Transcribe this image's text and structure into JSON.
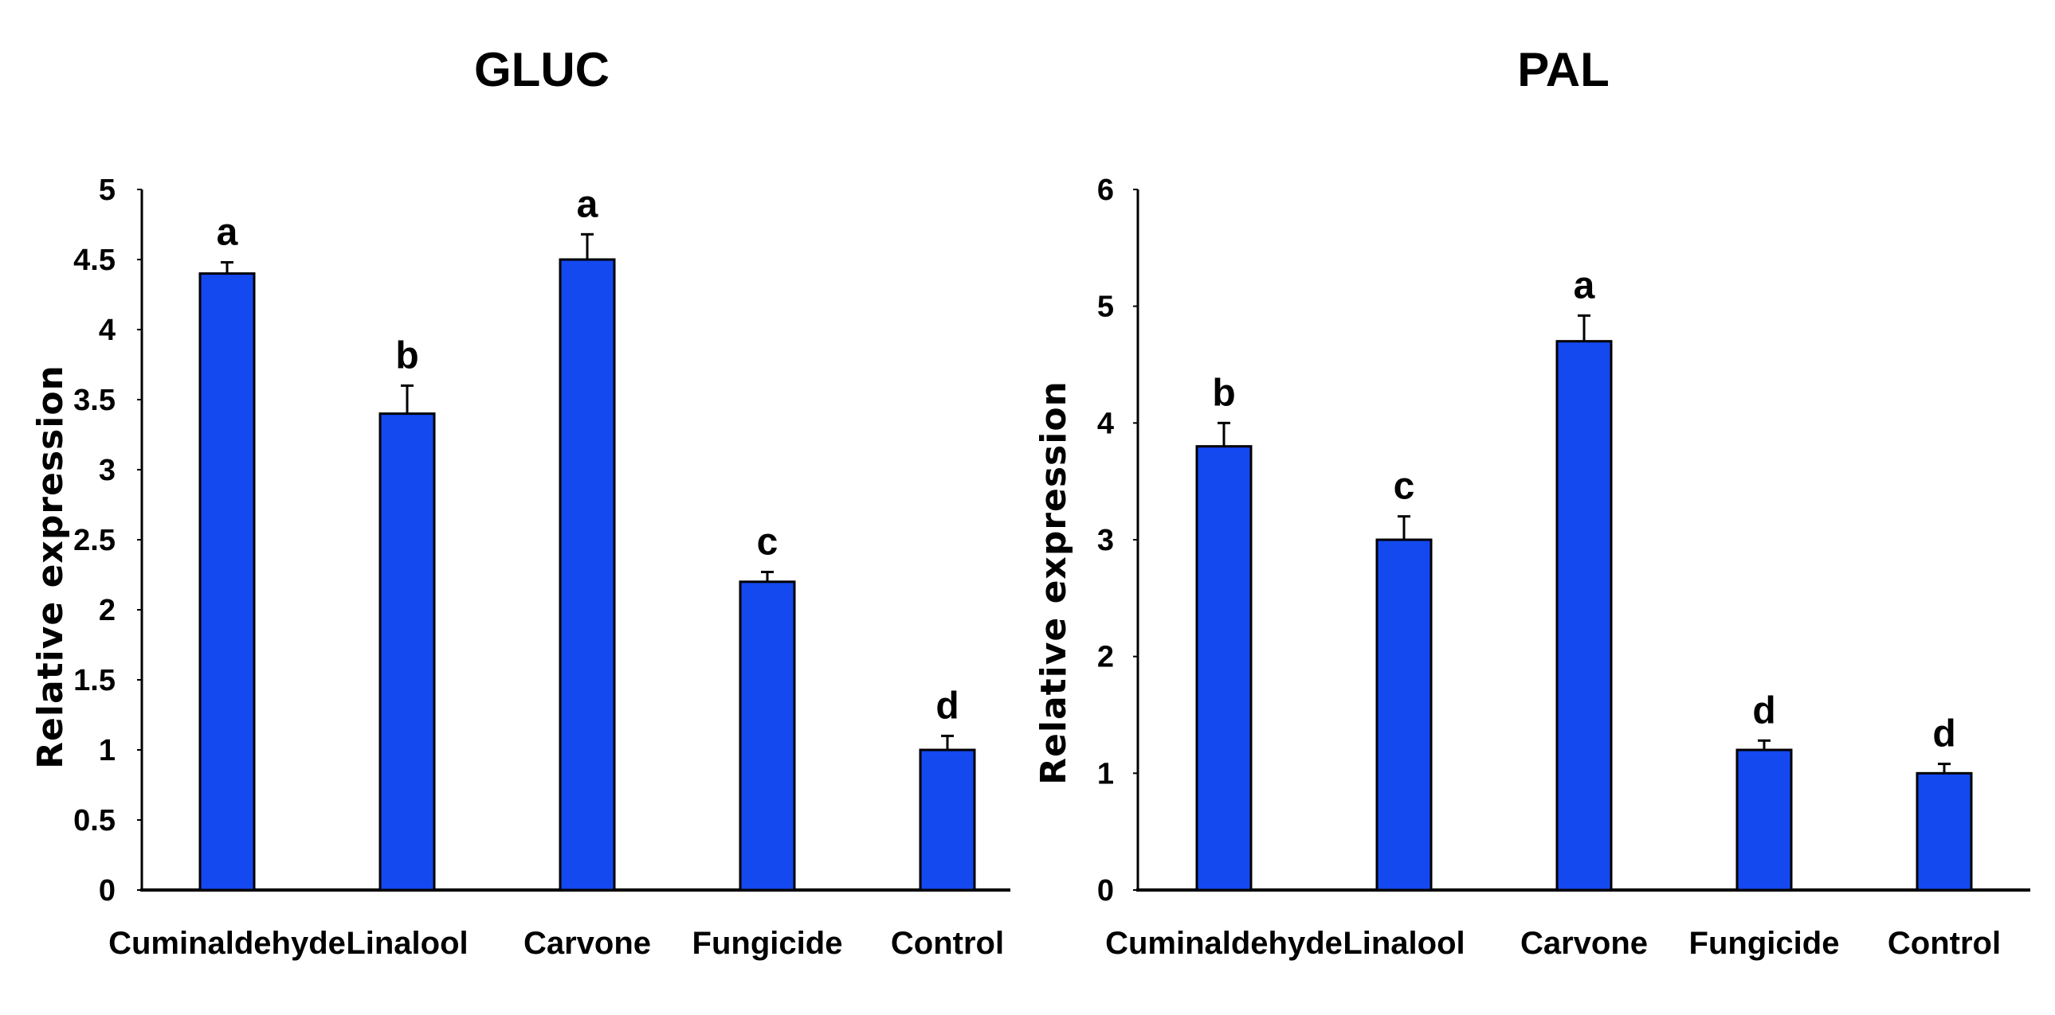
{
  "chart_data": [
    {
      "type": "bar",
      "title": "GLUC",
      "ylabel": "Relative expression",
      "xlabel": "",
      "categories": [
        "Cuminaldehyde",
        "Linalool",
        "Carvone",
        "Fungicide",
        "Control"
      ],
      "values": [
        4.4,
        3.4,
        4.5,
        2.2,
        1.0
      ],
      "errors": [
        0.08,
        0.2,
        0.18,
        0.07,
        0.1
      ],
      "significance": [
        "a",
        "b",
        "a",
        "c",
        "d"
      ],
      "ylim": [
        0,
        5
      ],
      "yticks": [
        "0",
        "0.5",
        "1",
        "1.5",
        "2",
        "2.5",
        "3",
        "3.5",
        "4",
        "4.5",
        "5"
      ],
      "bar_color": "#1449f0",
      "grid": false
    },
    {
      "type": "bar",
      "title": "PAL",
      "ylabel": "Relative expression",
      "xlabel": "",
      "categories": [
        "Cuminaldehyde",
        "Linalool",
        "Carvone",
        "Fungicide",
        "Control"
      ],
      "values": [
        3.8,
        3.0,
        4.7,
        1.2,
        1.0
      ],
      "errors": [
        0.2,
        0.2,
        0.22,
        0.08,
        0.08
      ],
      "significance": [
        "b",
        "c",
        "a",
        "d",
        "d"
      ],
      "ylim": [
        0,
        6
      ],
      "yticks": [
        "0",
        "1",
        "2",
        "3",
        "4",
        "5",
        "6"
      ],
      "bar_color": "#1449f0",
      "grid": false
    }
  ]
}
